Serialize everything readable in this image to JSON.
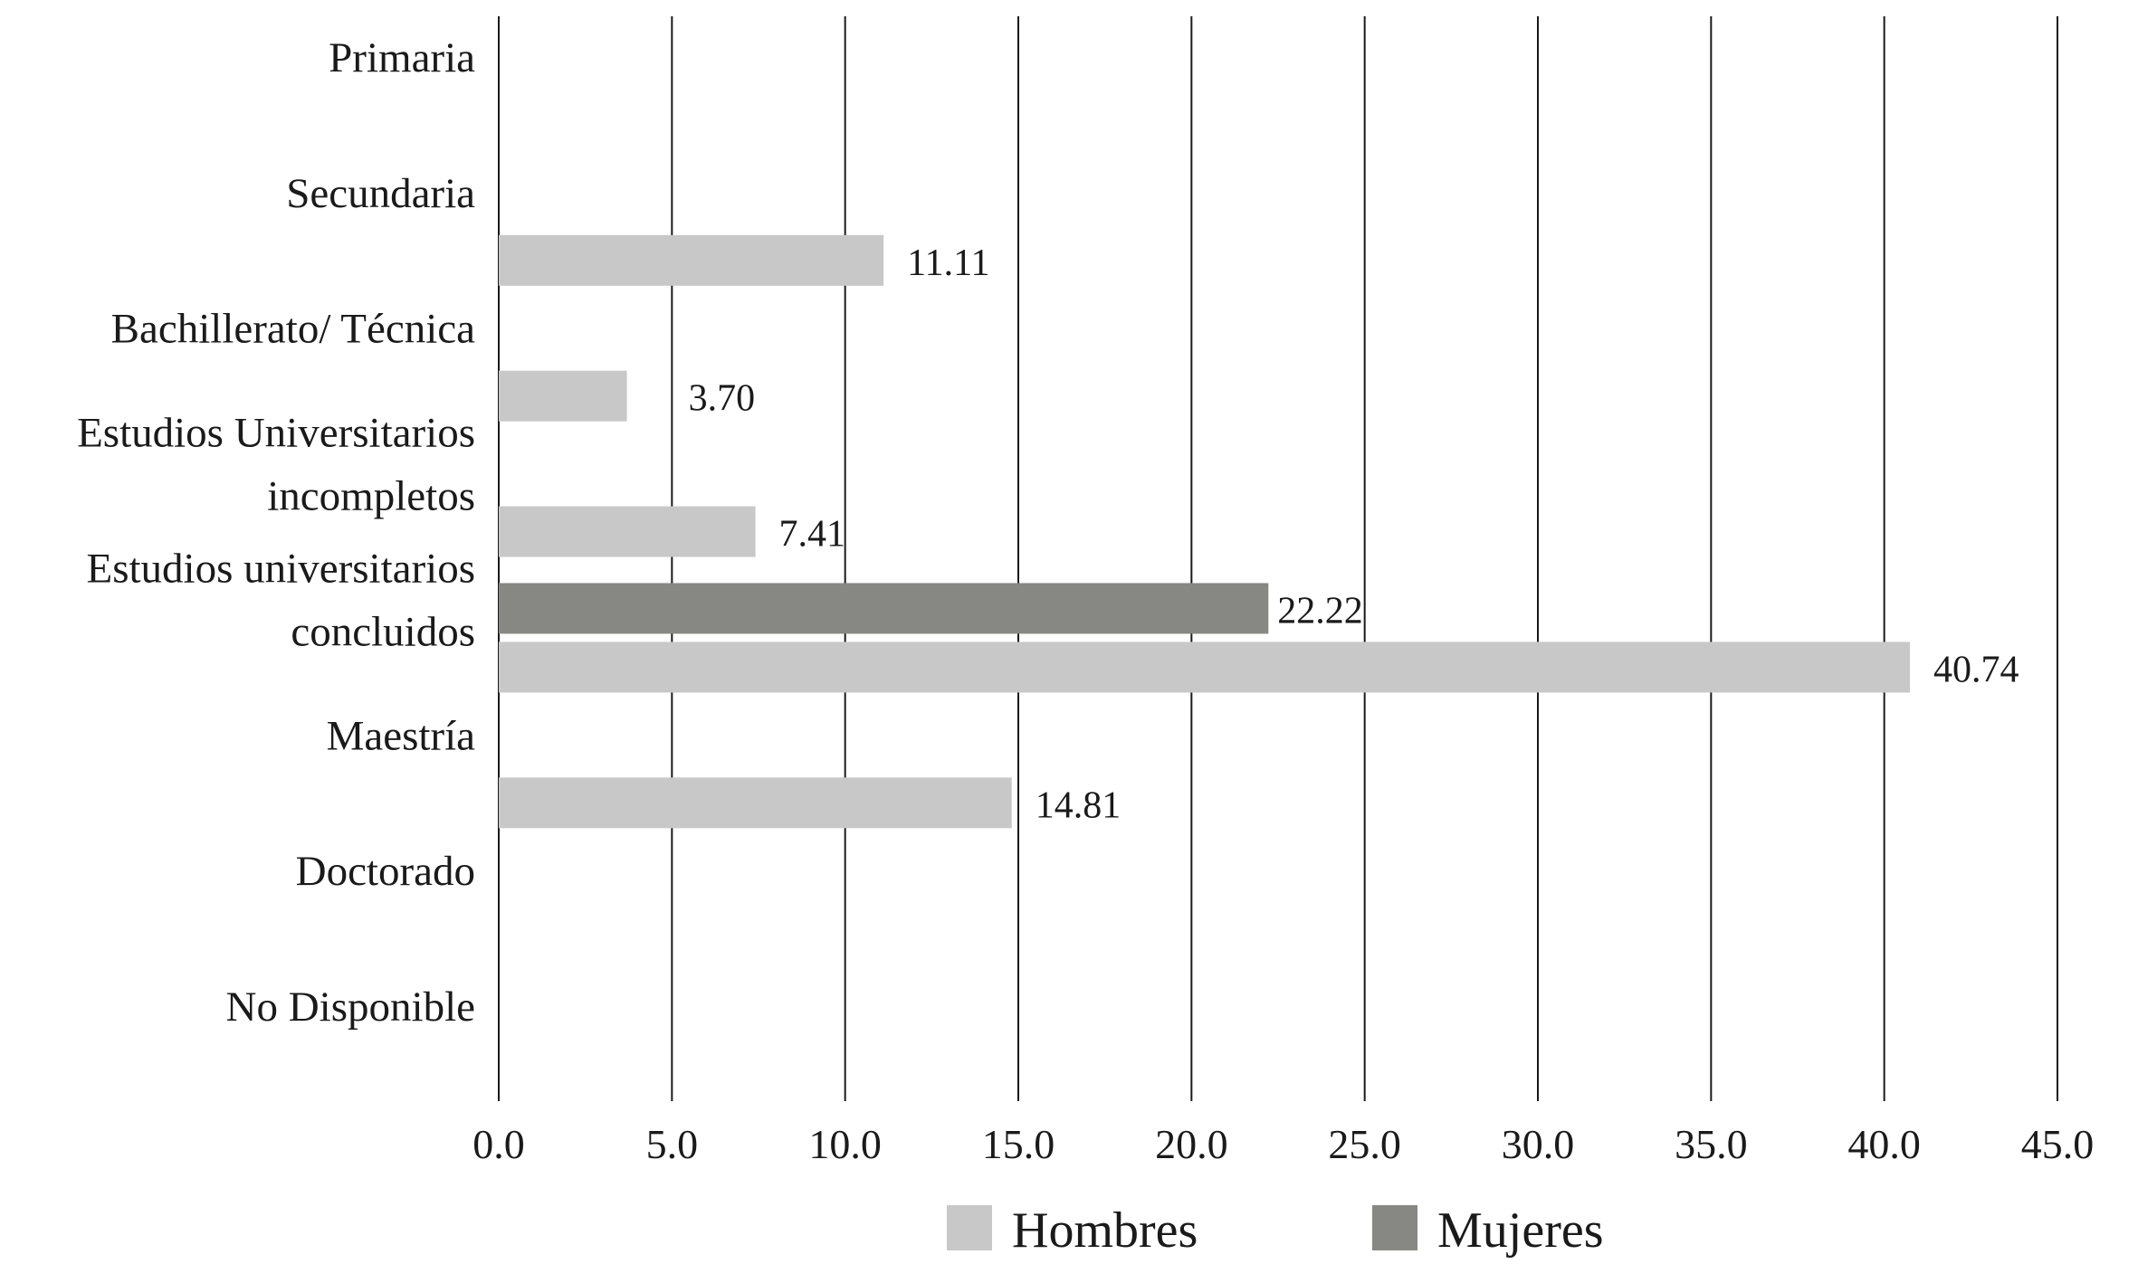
{
  "chart_data": {
    "type": "bar",
    "orientation": "horizontal",
    "title": "",
    "xlabel": "",
    "ylabel": "",
    "categories": [
      [
        "Primaria"
      ],
      [
        "Secundaria"
      ],
      [
        "Bachillerato/ Técnica"
      ],
      [
        "Estudios Universitarios",
        "incompletos"
      ],
      [
        "Estudios universitarios",
        "concluidos"
      ],
      [
        "Maestría"
      ],
      [
        "Doctorado"
      ],
      [
        "No Disponible"
      ]
    ],
    "series": [
      {
        "name": "Hombres",
        "color": "#c8c8c8",
        "values": [
          null,
          11.11,
          3.7,
          7.41,
          40.74,
          14.81,
          null,
          null
        ],
        "value_labels": [
          "",
          "11.11",
          "3.70",
          "7.41",
          "40.74",
          "14.81",
          "",
          ""
        ]
      },
      {
        "name": "Mujeres",
        "color": "#878784",
        "values": [
          null,
          null,
          null,
          null,
          22.22,
          null,
          null,
          null
        ],
        "value_labels": [
          "",
          "",
          "",
          "",
          "22.22",
          "",
          "",
          ""
        ]
      }
    ],
    "xlim": [
      0,
      45
    ],
    "xticks": [
      "0.0",
      "5.0",
      "10.0",
      "15.0",
      "20.0",
      "25.0",
      "30.0",
      "35.0",
      "40.0",
      "45.0"
    ],
    "grid": "vertical",
    "gridline_color": "#1a1a1a",
    "legend_position": "bottom"
  }
}
